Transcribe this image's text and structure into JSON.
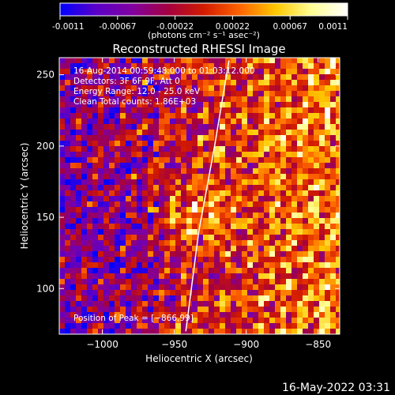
{
  "chart_data": {
    "type": "heatmap",
    "title": "Reconstructed RHESSI Image",
    "colorbar": {
      "ticks": [
        "-0.0011",
        "-0.00067",
        "-0.00022",
        "0.00022",
        "0.00067",
        "0.0011"
      ],
      "range": [
        -0.0011,
        0.0011
      ],
      "unit_label": "(photons cm⁻² s⁻¹ asec⁻²)",
      "colors": [
        "#0000ff",
        "#5a00c8",
        "#8000a0",
        "#a40040",
        "#d21a00",
        "#ff6400",
        "#ffc800",
        "#ffff96",
        "#ffffff"
      ]
    },
    "xlabel": "Heliocentric X (arcsec)",
    "ylabel": "Heliocentric Y (arcsec)",
    "xlim": [
      -1030,
      -835
    ],
    "ylim": [
      68,
      262
    ],
    "xticks": [
      -1000,
      -950,
      -900,
      -850
    ],
    "xtick_labels": [
      "−1000",
      "−950",
      "−900",
      "−850"
    ],
    "yticks": [
      100,
      150,
      200,
      250
    ],
    "ytick_labels": [
      "100",
      "150",
      "200",
      "250"
    ],
    "annotations": [
      "16-Aug-2014 00:59:48.000 to 01:03:12.000",
      "Detectors: 3F 6F 9F, Att 0",
      "Energy Range: 12.0 - 25.0 keV",
      "Clean     Total counts: 1.86E+03"
    ],
    "peak_label": "Position of Peak = [−866,99]",
    "limb_curve": [
      [
        -942,
        70
      ],
      [
        -933,
        140
      ],
      [
        -922,
        200
      ],
      [
        -912,
        260
      ]
    ]
  },
  "footer_date": "16-May-2022 03:31"
}
